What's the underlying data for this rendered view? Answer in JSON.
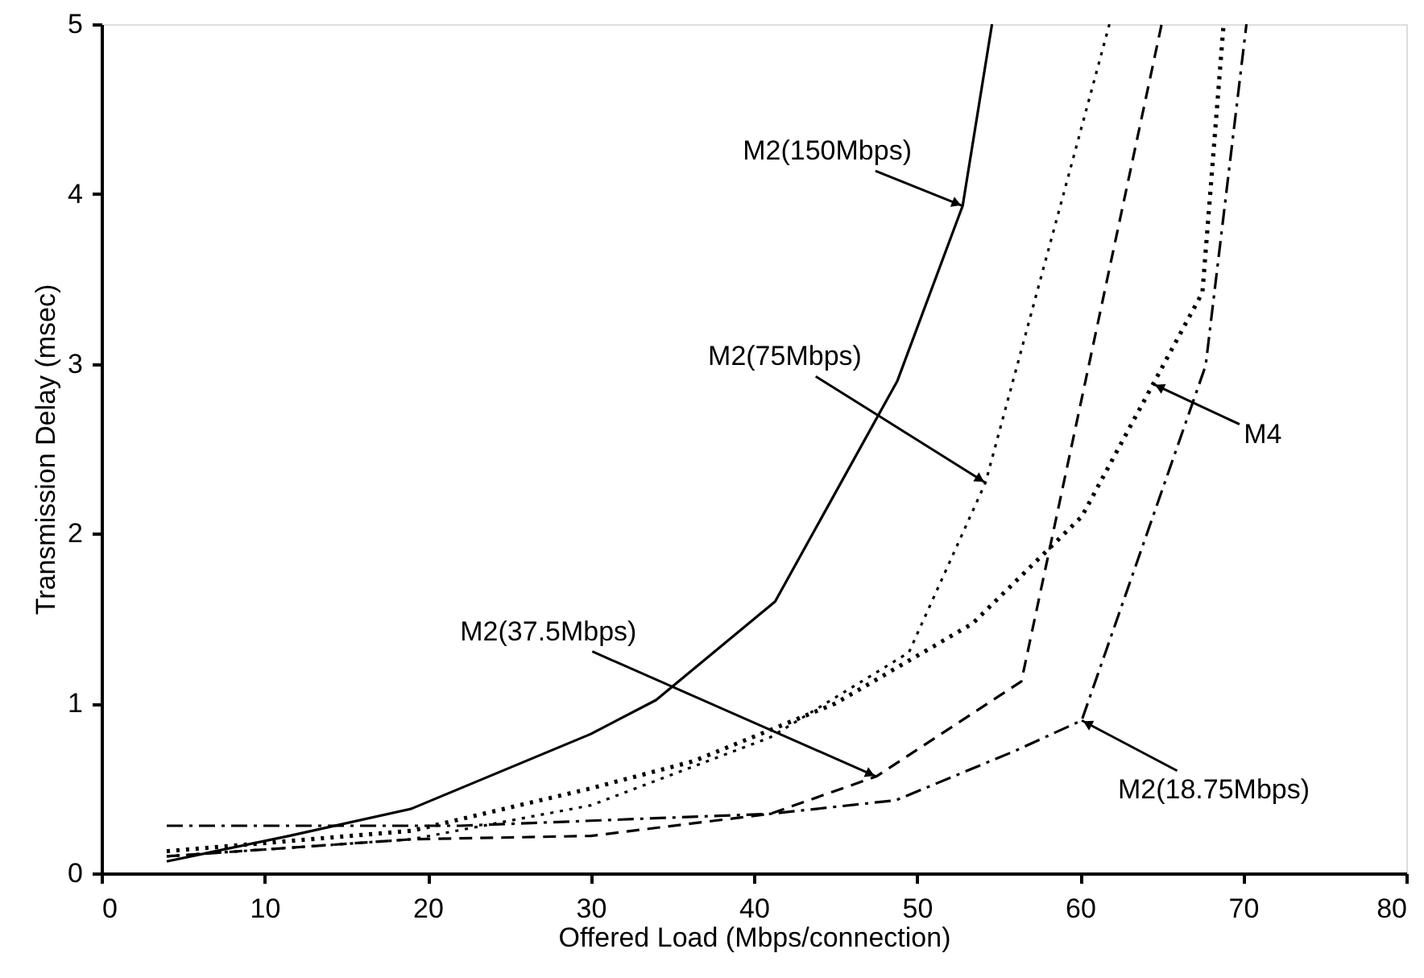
{
  "chart_data": {
    "type": "line",
    "xlabel": "Offered Load (Mbps/connection)",
    "ylabel": "Transmission Delay (msec)",
    "xlim": [
      0,
      80
    ],
    "xticks": [
      0,
      10,
      20,
      30,
      40,
      50,
      60,
      70,
      80
    ],
    "ylim": [
      0,
      5
    ],
    "yticks": [
      0,
      1,
      2,
      3,
      4,
      5
    ],
    "grid": false,
    "marker": "none",
    "series": [
      {
        "color": "#000000",
        "line_style": "solid",
        "x": [
          4,
          11.5,
          19,
          30,
          34,
          41.3,
          48.8,
          52.8,
          54.6
        ],
        "values": [
          0.07,
          0.22,
          0.38,
          0.82,
          1.02,
          1.6,
          2.9,
          3.93,
          5
        ]
      },
      {
        "color": "#000000",
        "line_style": "dotted",
        "x": [
          4,
          19,
          30,
          41,
          49.5,
          54.2,
          61.8
        ],
        "values": [
          0.1,
          0.2,
          0.4,
          0.8,
          1.3,
          2.3,
          5
        ]
      },
      {
        "color": "#000000",
        "line_style": "dashed",
        "x": [
          4,
          19,
          30,
          41,
          47.5,
          56.4,
          65
        ],
        "values": [
          0.1,
          0.2,
          0.22,
          0.35,
          0.57,
          1.13,
          5
        ]
      },
      {
        "color": "#000000",
        "line_style": "dotted",
        "x": [
          4,
          19,
          30,
          36.3,
          45,
          53.4,
          60.1,
          67.5,
          68.8
        ],
        "values": [
          0.13,
          0.25,
          0.5,
          0.66,
          1.0,
          1.47,
          2.1,
          3.42,
          5
        ]
      },
      {
        "color": "#000000",
        "line_style": "dashdot",
        "x": [
          4,
          22,
          41,
          48.7,
          56,
          60.1,
          67.7,
          70.2
        ],
        "values": [
          0.28,
          0.28,
          0.35,
          0.43,
          0.72,
          0.9,
          2.99,
          5
        ]
      }
    ],
    "annotations": [
      {
        "text": "M2(150Mbps)",
        "x": 52.8,
        "y": 3.93
      },
      {
        "text": "M2(75Mbps)",
        "x": 54.2,
        "y": 2.3
      },
      {
        "text": "M4",
        "x": 64.5,
        "y": 2.88
      },
      {
        "text": "M2(37.5Mbps)",
        "x": 47.5,
        "y": 0.57
      },
      {
        "text": "M2(18.75Mbps)",
        "x": 60.1,
        "y": 0.9
      }
    ]
  }
}
